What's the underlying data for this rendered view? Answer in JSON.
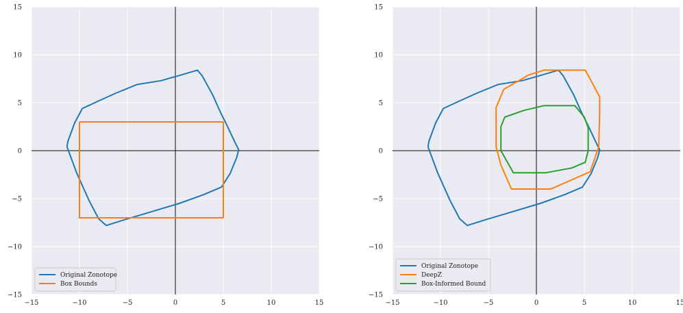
{
  "chart_data": [
    {
      "type": "line",
      "xlim": [
        -15,
        15
      ],
      "ylim": [
        -15,
        15
      ],
      "ticks": [
        -15,
        -10,
        -5,
        0,
        5,
        10,
        15
      ],
      "grid": true,
      "legend_position": "bottom-left",
      "series": [
        {
          "name": "Original Zonotope",
          "color": "#1f77b4",
          "x": [
            -11.3,
            -11.2,
            -10.5,
            -9.7,
            -8.2,
            -6.2,
            -4.0,
            -1.5,
            0.6,
            2.3,
            2.8,
            3.9,
            4.7,
            5.4,
            6.2,
            6.6,
            6.4,
            5.7,
            4.8,
            2.9,
            0.4,
            -2.6,
            -5.3,
            -7.2,
            -8.0,
            -9.0,
            -10.3,
            -11.3
          ],
          "y": [
            0.4,
            1.0,
            2.9,
            4.4,
            5.1,
            6.0,
            6.9,
            7.3,
            7.9,
            8.4,
            7.8,
            5.8,
            4.0,
            2.6,
            0.9,
            0.1,
            -0.7,
            -2.4,
            -3.8,
            -4.6,
            -5.5,
            -6.4,
            -7.2,
            -7.8,
            -7.1,
            -5.2,
            -2.3,
            0.4
          ]
        },
        {
          "name": "Box Bounds",
          "color": "#ff7f0e",
          "x": [
            -10,
            5,
            5,
            -10,
            -10
          ],
          "y": [
            3,
            3,
            -7,
            -7,
            3
          ]
        }
      ]
    },
    {
      "type": "line",
      "xlim": [
        -15,
        15
      ],
      "ylim": [
        -15,
        15
      ],
      "ticks": [
        -15,
        -10,
        -5,
        0,
        5,
        10,
        15
      ],
      "grid": true,
      "legend_position": "bottom-left",
      "series": [
        {
          "name": "Original Zonotope",
          "color": "#1f77b4",
          "x": [
            -11.3,
            -11.2,
            -10.5,
            -9.7,
            -8.2,
            -6.2,
            -4.0,
            -1.5,
            0.6,
            2.3,
            2.8,
            3.9,
            4.7,
            5.4,
            6.2,
            6.6,
            6.4,
            5.7,
            4.8,
            2.9,
            0.4,
            -2.6,
            -5.3,
            -7.2,
            -8.0,
            -9.0,
            -10.3,
            -11.3
          ],
          "y": [
            0.4,
            1.0,
            2.9,
            4.4,
            5.1,
            6.0,
            6.9,
            7.3,
            7.9,
            8.4,
            7.8,
            5.8,
            4.0,
            2.6,
            0.9,
            0.1,
            -0.7,
            -2.4,
            -3.8,
            -4.6,
            -5.5,
            -6.4,
            -7.2,
            -7.8,
            -7.1,
            -5.2,
            -2.3,
            0.4
          ]
        },
        {
          "name": "DeepZ",
          "color": "#ff7f0e",
          "x": [
            -4.2,
            -4.2,
            -3.4,
            -0.8,
            0.8,
            5.1,
            5.7,
            6.6,
            6.6,
            6.5,
            5.6,
            1.5,
            -2.6,
            -3.7,
            -4.2
          ],
          "y": [
            0.4,
            4.5,
            6.4,
            7.9,
            8.4,
            8.4,
            7.3,
            5.6,
            4.1,
            0.4,
            -2.2,
            -4.0,
            -4.0,
            -1.5,
            0.4
          ]
        },
        {
          "name": "Box-Informed Bound",
          "color": "#2ca02c",
          "x": [
            -3.7,
            -3.7,
            -3.3,
            -1.3,
            0.8,
            4.0,
            5.0,
            5.4,
            5.4,
            5.1,
            3.7,
            1.0,
            -2.4,
            -3.7
          ],
          "y": [
            0.0,
            2.5,
            3.5,
            4.2,
            4.7,
            4.7,
            3.5,
            2.4,
            0.0,
            -1.2,
            -1.8,
            -2.3,
            -2.3,
            0.0
          ]
        }
      ]
    }
  ]
}
